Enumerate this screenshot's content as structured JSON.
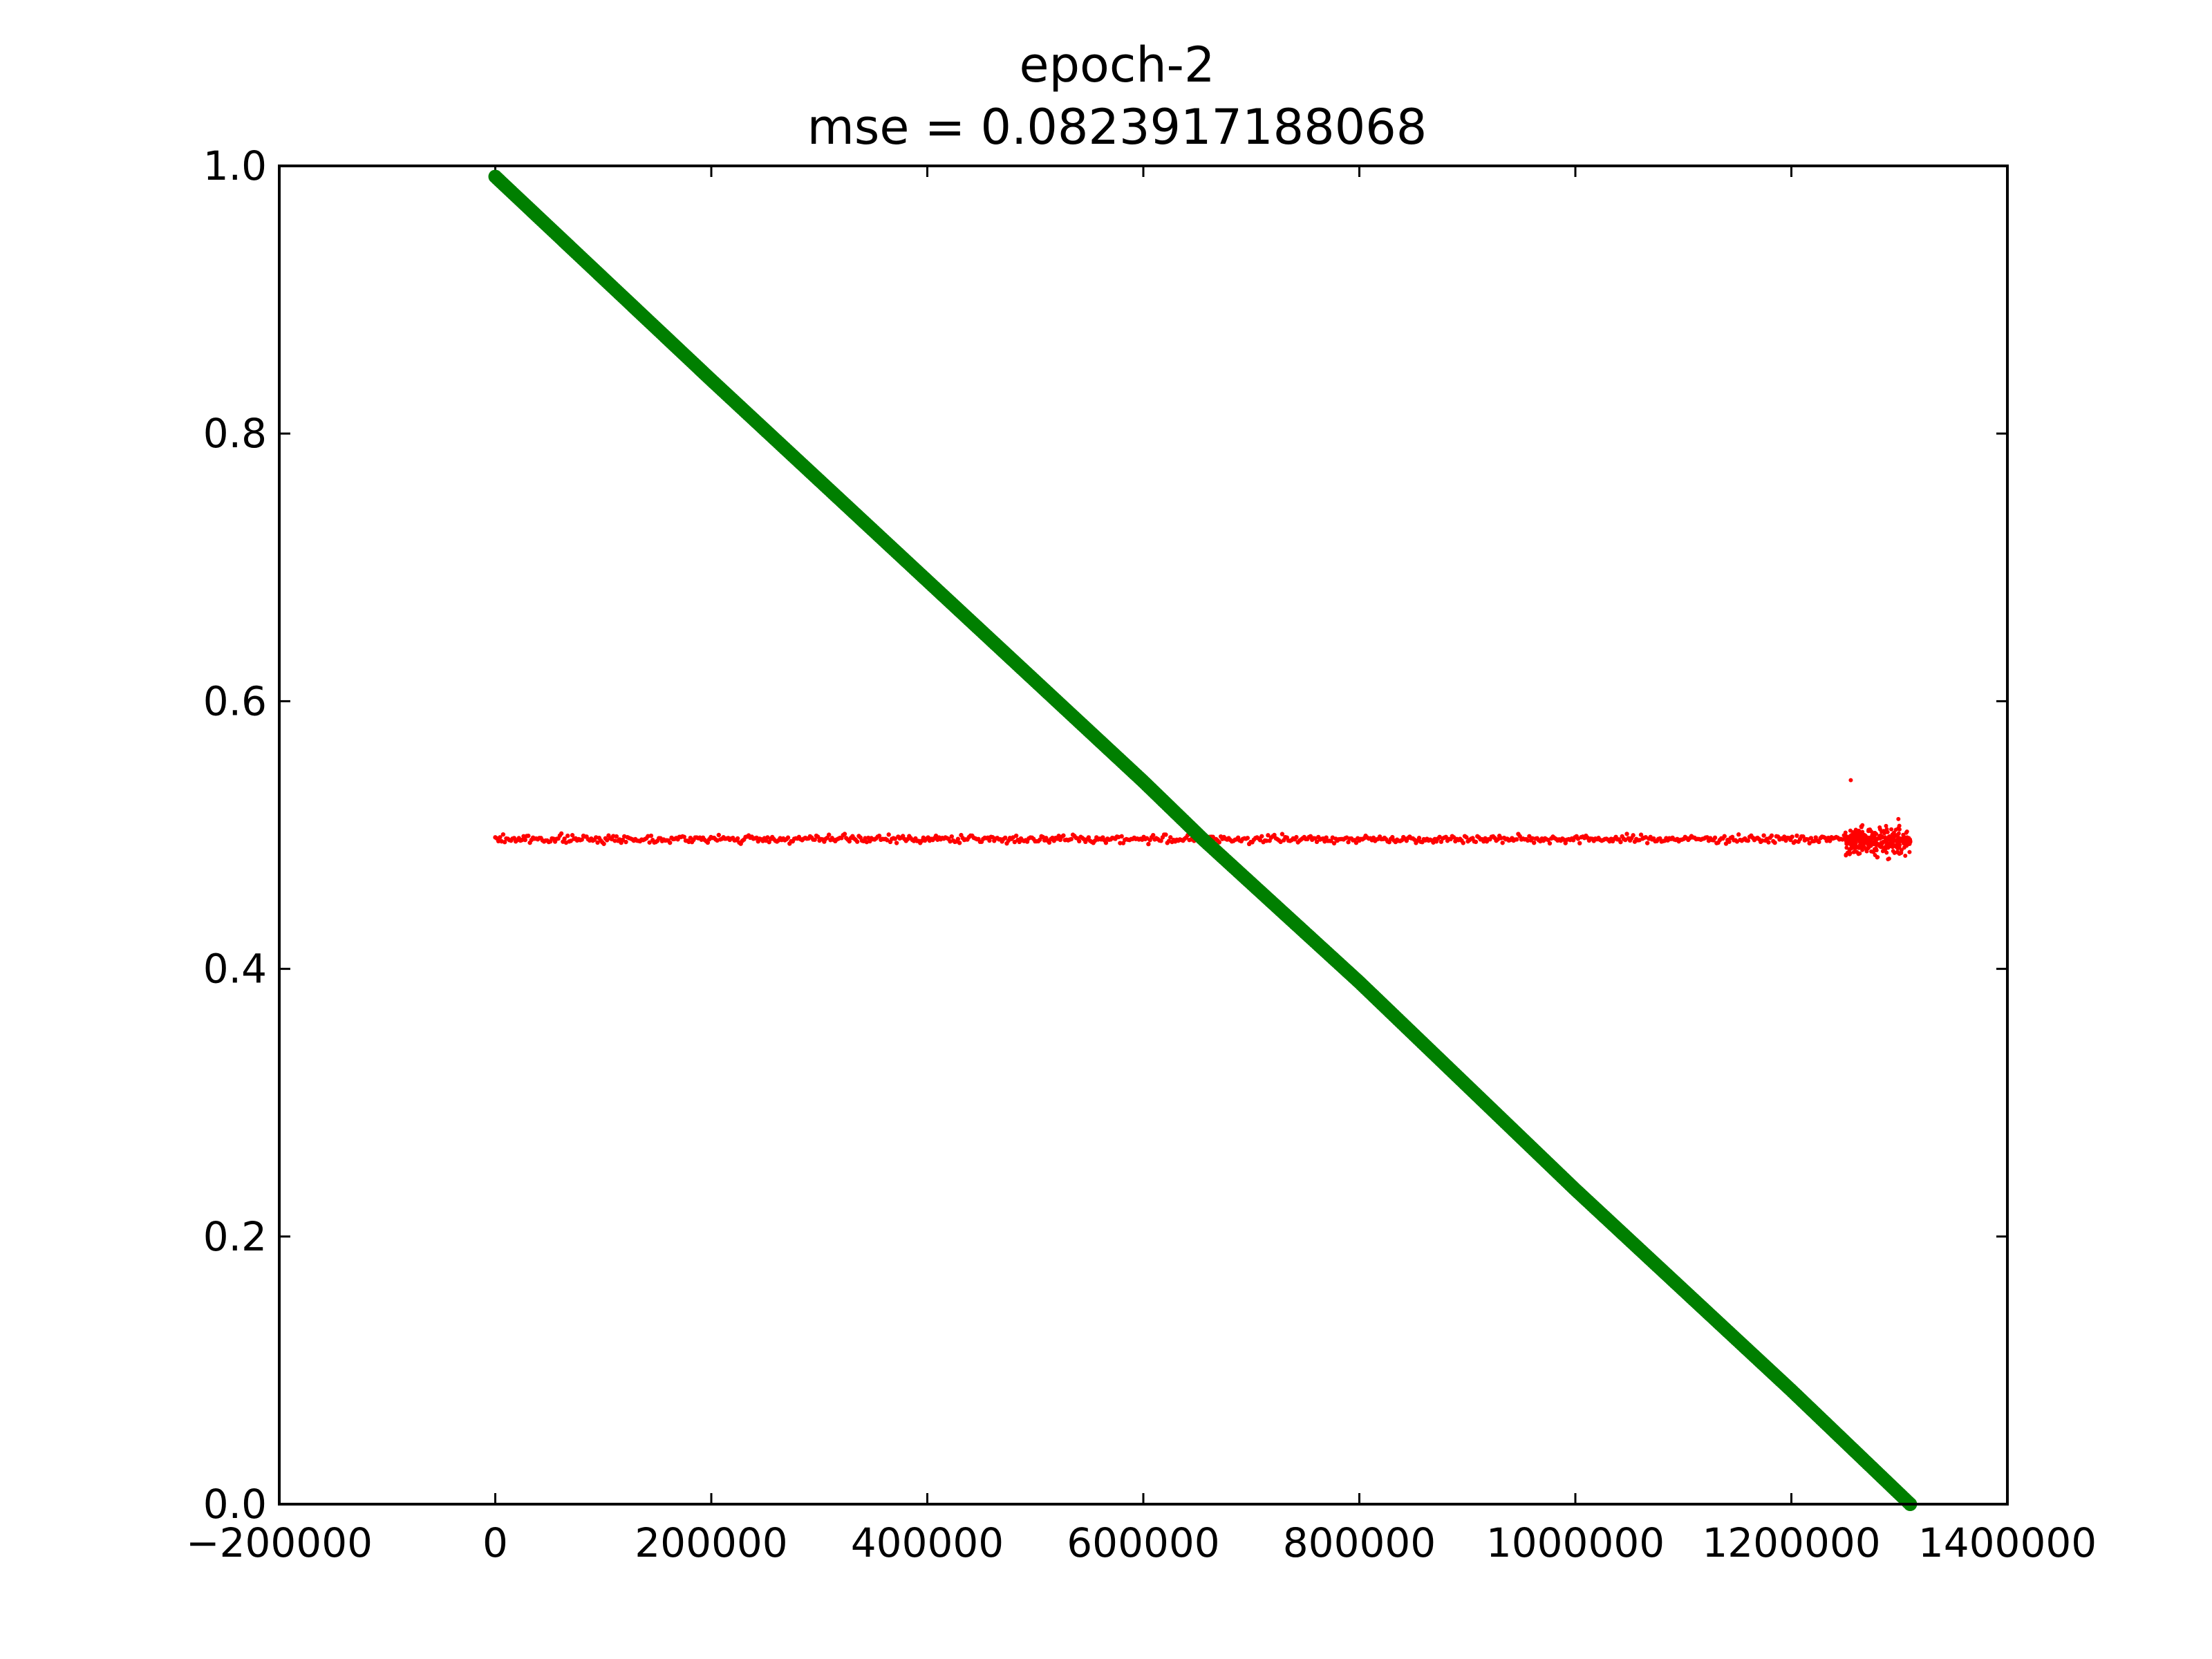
{
  "chart_data": {
    "type": "scatter",
    "title_lines": [
      "epoch-2",
      "mse = 0.0823917188068"
    ],
    "xlabel": "",
    "ylabel": "",
    "xlim": [
      -200000,
      1400000
    ],
    "ylim": [
      0.0,
      1.0
    ],
    "x_ticks": [
      -200000,
      0,
      200000,
      400000,
      600000,
      800000,
      1000000,
      1200000,
      1400000
    ],
    "x_tick_labels": [
      "−200000",
      "0",
      "200000",
      "400000",
      "600000",
      "800000",
      "1000000",
      "1200000",
      "1400000"
    ],
    "y_ticks": [
      0.0,
      0.2,
      0.4,
      0.6,
      0.8,
      1.0
    ],
    "y_tick_labels": [
      "0.0",
      "0.2",
      "0.4",
      "0.6",
      "0.8",
      "1.0"
    ],
    "grid": false,
    "legend": "none",
    "series": [
      {
        "color": "#007f00",
        "style": "dense points forming a thick descending line",
        "x_range": [
          0,
          1310000
        ],
        "y_range": [
          0.992,
          0.0
        ],
        "sample_x": [
          0,
          200000,
          400000,
          600000,
          655000,
          800000,
          1000000,
          1200000,
          1310000
        ],
        "sample_y": [
          0.992,
          0.84,
          0.69,
          0.54,
          0.497,
          0.39,
          0.235,
          0.085,
          0.0
        ]
      },
      {
        "color": "#ff0000",
        "style": "small scattered points, flat band with wider spread near the right end",
        "x_range": [
          0,
          1310000
        ],
        "y_center": 0.497,
        "spread": 0.002,
        "right_end_cluster": {
          "x_range": [
            1250000,
            1310000
          ],
          "y_range": [
            0.475,
            0.515
          ]
        },
        "outlier_points": [
          {
            "x": 1255000,
            "y": 0.541
          }
        ]
      }
    ]
  }
}
